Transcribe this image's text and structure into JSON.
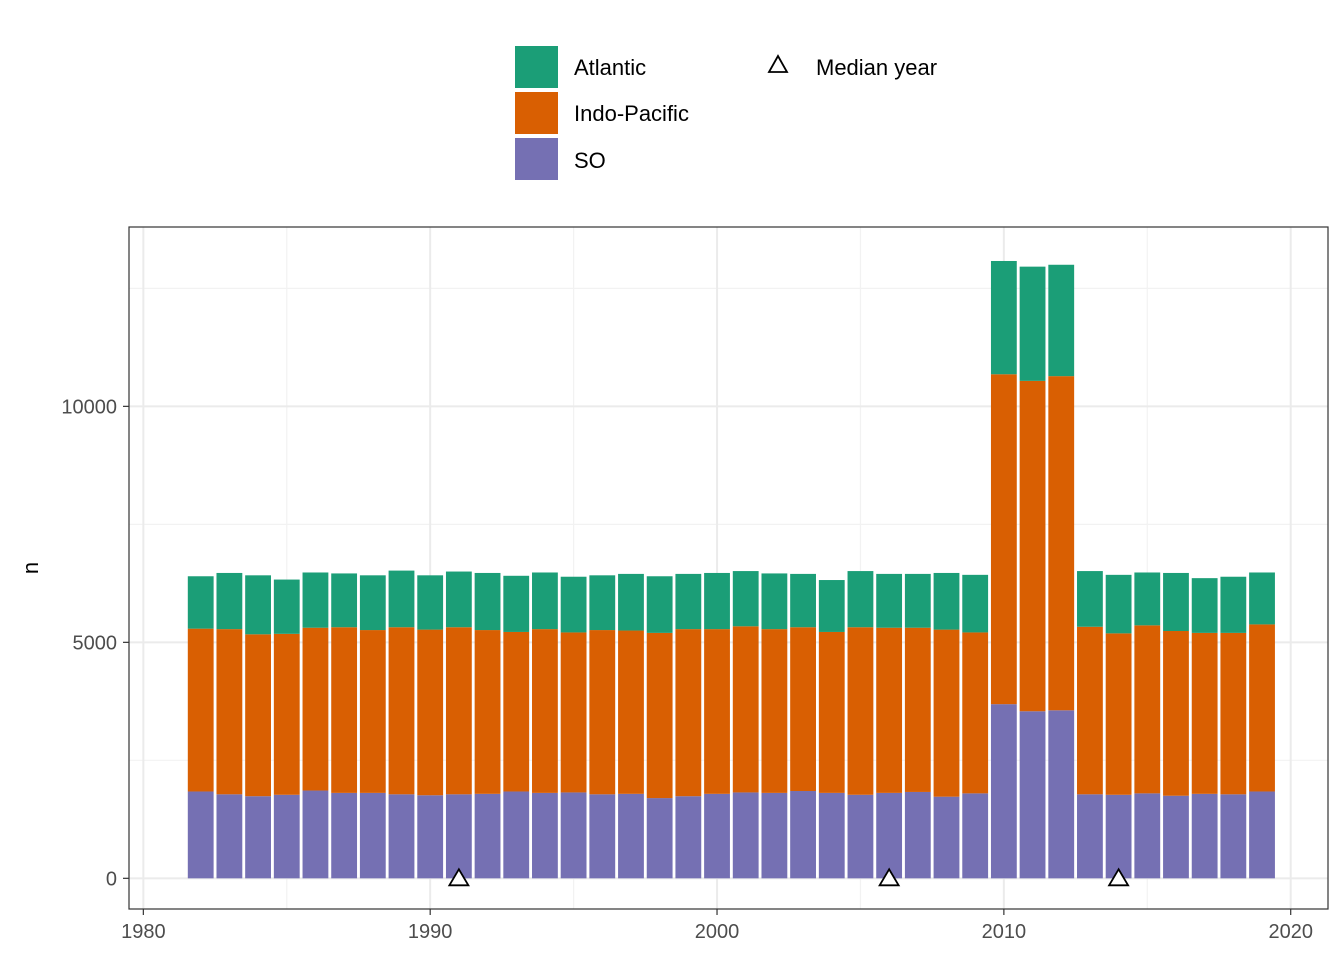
{
  "chart_data": {
    "type": "bar",
    "stacked": true,
    "xlabel": "",
    "ylabel": "n",
    "xlim": [
      1979.5,
      2021.3
    ],
    "ylim": [
      -650,
      13800
    ],
    "x_ticks": [
      1980,
      1990,
      2000,
      2010,
      2020
    ],
    "y_ticks": [
      0,
      5000,
      10000
    ],
    "grid": true,
    "legend_position": "top",
    "x": [
      1982,
      1983,
      1984,
      1985,
      1986,
      1987,
      1988,
      1989,
      1990,
      1991,
      1992,
      1993,
      1994,
      1995,
      1996,
      1997,
      1998,
      1999,
      2000,
      2001,
      2002,
      2003,
      2004,
      2005,
      2006,
      2007,
      2008,
      2009,
      2010,
      2011,
      2012,
      2013,
      2014,
      2015,
      2016,
      2017,
      2018,
      2019
    ],
    "series": [
      {
        "name": "SO",
        "color": "#7570B3",
        "values": [
          1840,
          1780,
          1740,
          1770,
          1860,
          1810,
          1810,
          1780,
          1760,
          1780,
          1790,
          1840,
          1810,
          1820,
          1780,
          1790,
          1700,
          1740,
          1790,
          1820,
          1810,
          1850,
          1810,
          1770,
          1810,
          1830,
          1730,
          1800,
          3690,
          3540,
          3560,
          1780,
          1770,
          1800,
          1750,
          1790,
          1780,
          1840
        ]
      },
      {
        "name": "Indo-Pacific",
        "color": "#D95F02",
        "values": [
          3450,
          3500,
          3430,
          3410,
          3450,
          3510,
          3450,
          3540,
          3510,
          3540,
          3470,
          3380,
          3470,
          3390,
          3480,
          3460,
          3500,
          3540,
          3490,
          3520,
          3470,
          3470,
          3410,
          3550,
          3500,
          3480,
          3540,
          3410,
          6990,
          7000,
          7080,
          3550,
          3420,
          3560,
          3490,
          3410,
          3420,
          3540
        ]
      },
      {
        "name": "Atlantic",
        "color": "#1B9E77",
        "values": [
          1110,
          1190,
          1250,
          1150,
          1170,
          1140,
          1160,
          1200,
          1150,
          1180,
          1210,
          1190,
          1200,
          1180,
          1160,
          1200,
          1200,
          1170,
          1190,
          1170,
          1180,
          1130,
          1100,
          1190,
          1140,
          1140,
          1200,
          1220,
          2400,
          2420,
          2360,
          1180,
          1240,
          1120,
          1230,
          1160,
          1190,
          1100
        ]
      }
    ],
    "median_year": {
      "name": "Median year",
      "x": [
        1991,
        2006,
        2014
      ],
      "y": [
        0,
        0,
        0
      ],
      "shape": "open-triangle"
    }
  }
}
